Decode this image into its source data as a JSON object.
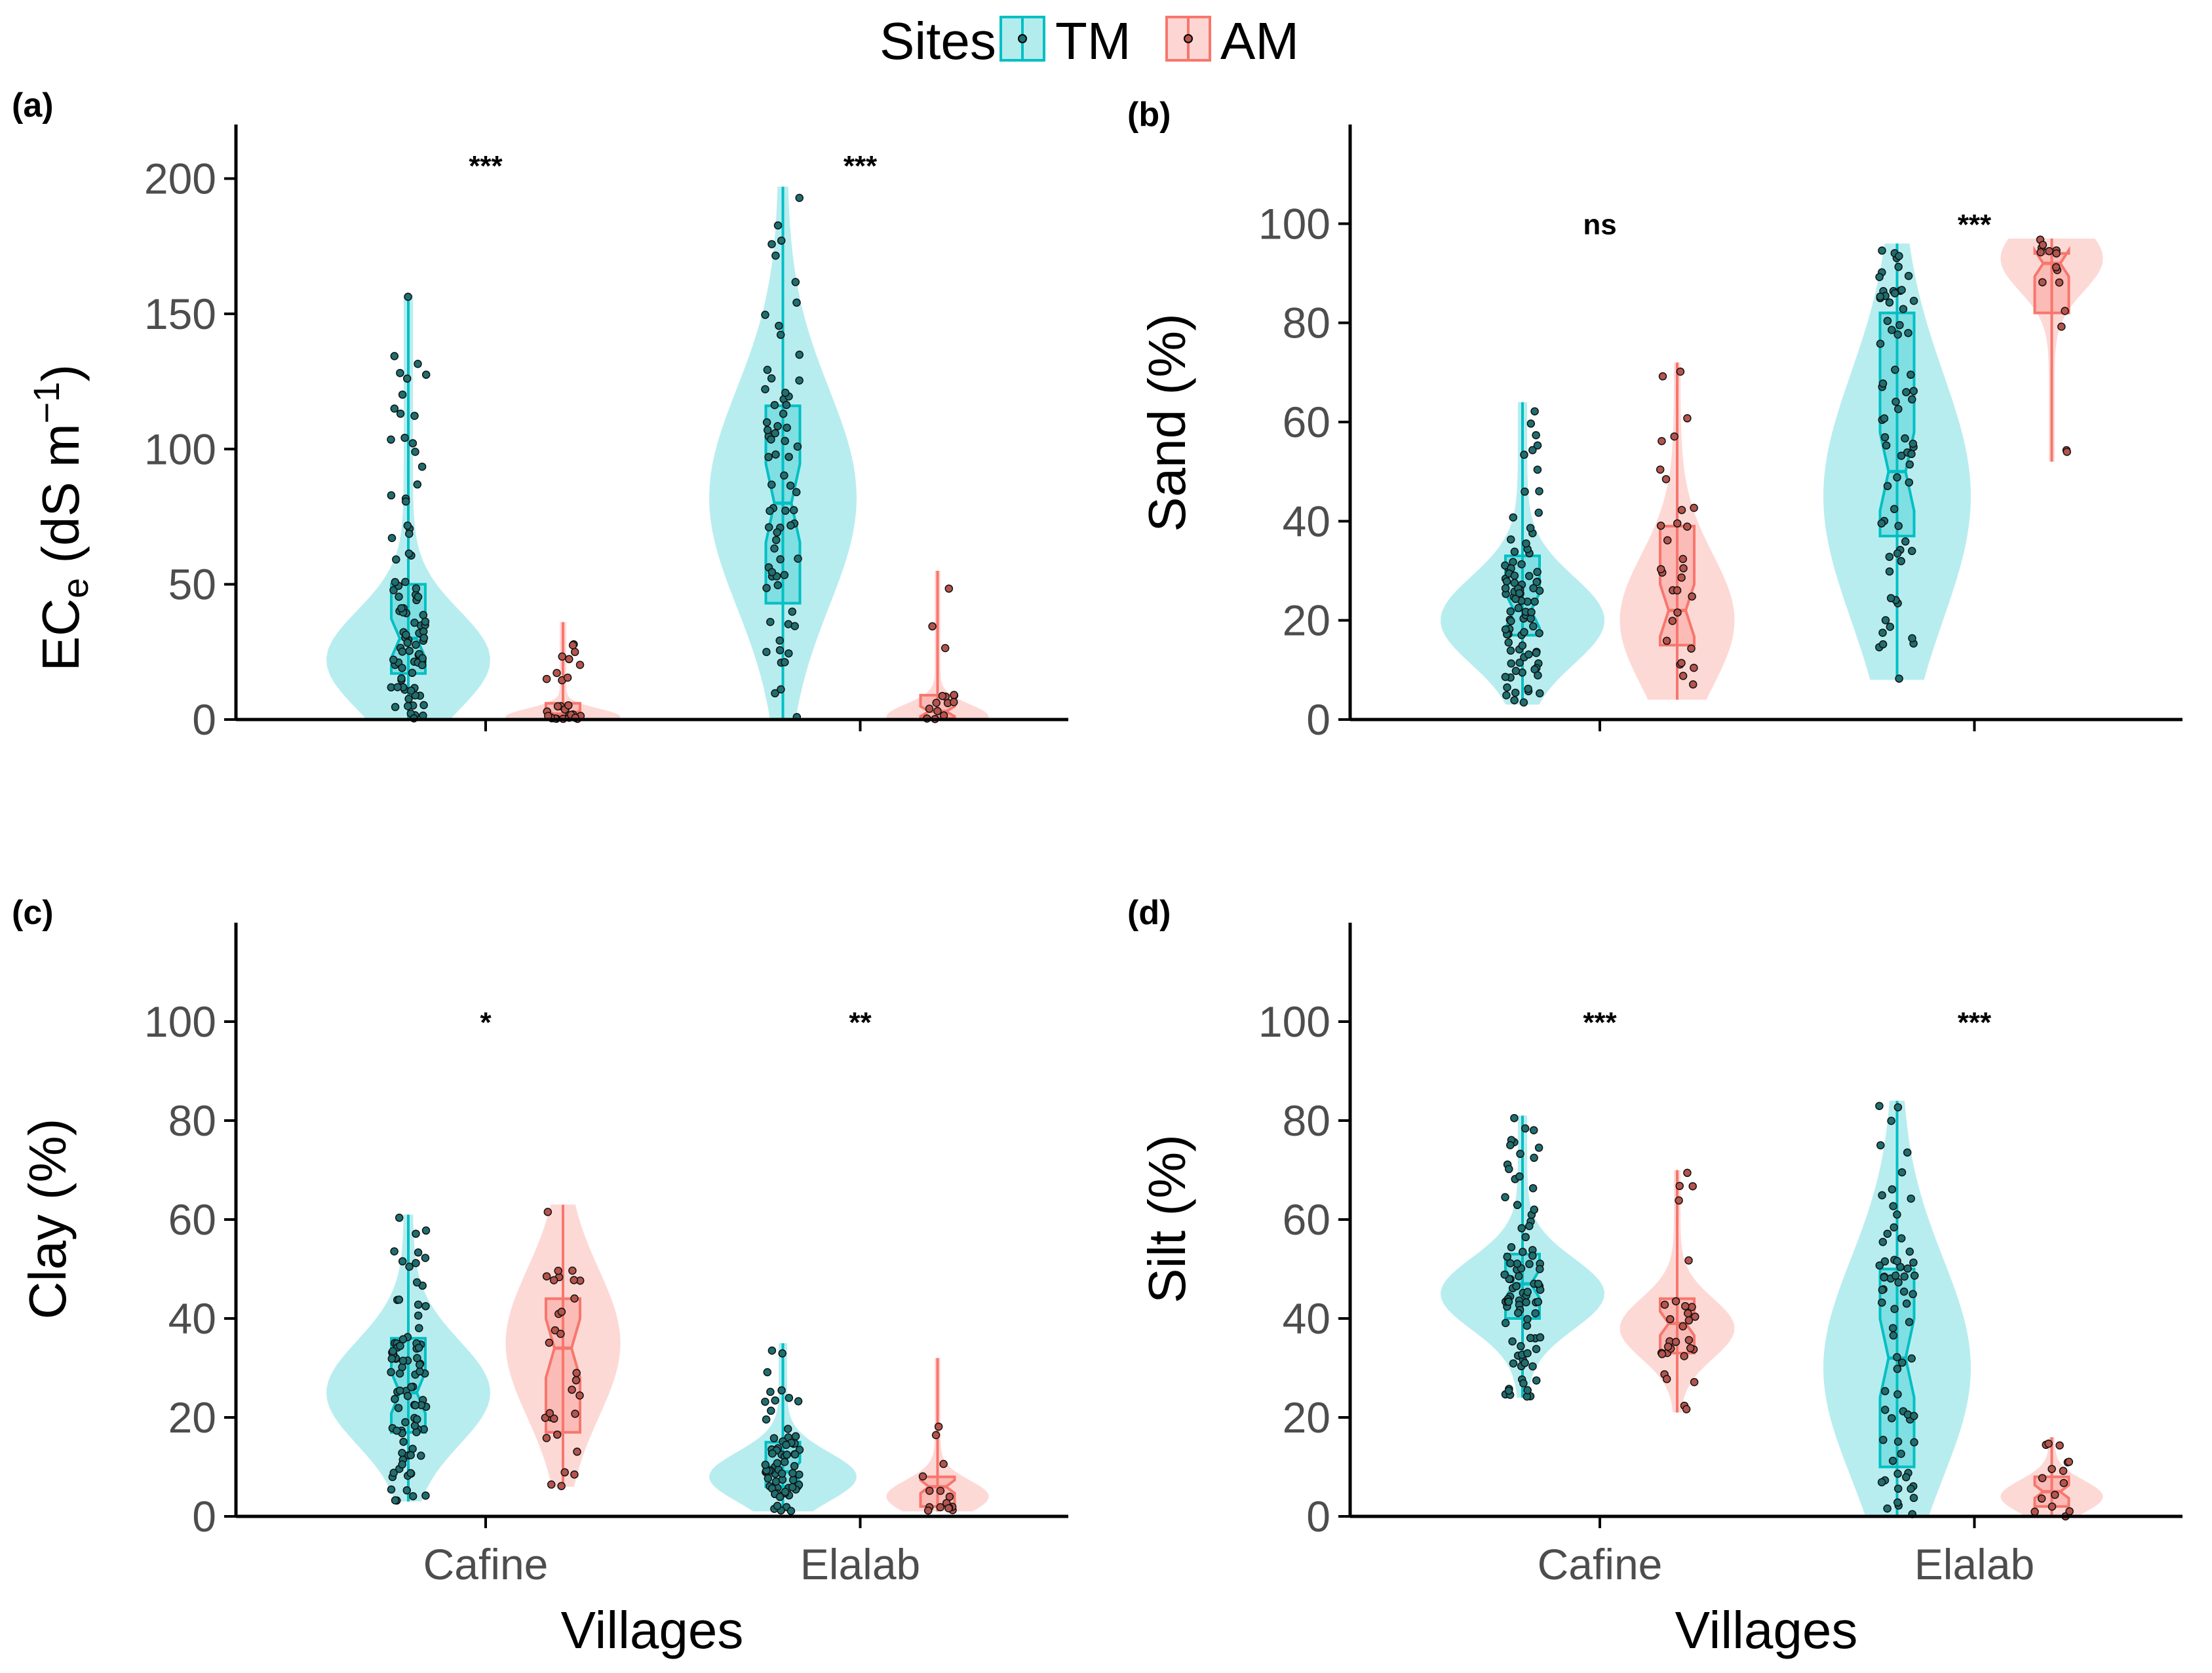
{
  "legend": {
    "title": "Sites",
    "entries": [
      {
        "label": "TM",
        "color": "#00BFC4"
      },
      {
        "label": "AM",
        "color": "#F8766D"
      }
    ]
  },
  "shared_xlabel": "Villages",
  "chart_data": [
    {
      "type": "violin-box",
      "panel": "(a)",
      "ylabel_main": "EC",
      "ylabel_sub": "e",
      "ylabel_rest": " (dS m",
      "ylabel_sup": "−1",
      "ylabel_close": ")",
      "ylim": [
        0,
        220
      ],
      "yticks": [
        0,
        50,
        100,
        150,
        200
      ],
      "categories": [
        "Cafine",
        "Elalab"
      ],
      "significance": [
        "***",
        "***"
      ],
      "series": [
        {
          "name": "TM",
          "groups": [
            {
              "min": 0,
              "q1": 17,
              "median": 30,
              "q3": 50,
              "max": 157,
              "mode": 22,
              "n": 90
            },
            {
              "min": 0,
              "q1": 43,
              "median": 80,
              "q3": 116,
              "max": 197,
              "mode": 82,
              "n": 70
            }
          ]
        },
        {
          "name": "AM",
          "groups": [
            {
              "min": 0,
              "q1": 0.5,
              "median": 2,
              "q3": 6,
              "max": 36,
              "mode": 1,
              "n": 30
            },
            {
              "min": 0,
              "q1": 0.5,
              "median": 3,
              "q3": 9,
              "max": 55,
              "mode": 1,
              "n": 15
            }
          ]
        }
      ]
    },
    {
      "type": "violin-box",
      "panel": "(b)",
      "ylabel_main": "Sand (%)",
      "ylim": [
        0,
        120
      ],
      "yticks": [
        0,
        20,
        40,
        60,
        80,
        100
      ],
      "categories": [
        "Cafine",
        "Elalab"
      ],
      "significance": [
        "ns",
        "***"
      ],
      "series": [
        {
          "name": "TM",
          "groups": [
            {
              "min": 3,
              "q1": 17,
              "median": 22,
              "q3": 33,
              "max": 64,
              "mode": 20,
              "n": 90
            },
            {
              "min": 8,
              "q1": 37,
              "median": 50,
              "q3": 82,
              "max": 96,
              "mode": 45,
              "n": 70
            }
          ]
        },
        {
          "name": "AM",
          "groups": [
            {
              "min": 4,
              "q1": 15,
              "median": 22,
              "q3": 39,
              "max": 72,
              "mode": 20,
              "n": 30
            },
            {
              "min": 52,
              "q1": 82,
              "median": 92,
              "q3": 94,
              "max": 97,
              "mode": 93,
              "n": 15
            }
          ]
        }
      ]
    },
    {
      "type": "violin-box",
      "panel": "(c)",
      "ylabel_main": "Clay (%)",
      "ylim": [
        0,
        120
      ],
      "yticks": [
        0,
        20,
        40,
        60,
        80,
        100
      ],
      "categories": [
        "Cafine",
        "Elalab"
      ],
      "significance": [
        "*",
        "**"
      ],
      "series": [
        {
          "name": "TM",
          "groups": [
            {
              "min": 3,
              "q1": 17,
              "median": 25,
              "q3": 36,
              "max": 61,
              "mode": 25,
              "n": 90
            },
            {
              "min": 1,
              "q1": 6,
              "median": 9,
              "q3": 15,
              "max": 35,
              "mode": 8,
              "n": 70
            }
          ]
        },
        {
          "name": "AM",
          "groups": [
            {
              "min": 6,
              "q1": 17,
              "median": 34,
              "q3": 44,
              "max": 63,
              "mode": 35,
              "n": 30
            },
            {
              "min": 1,
              "q1": 2,
              "median": 6,
              "q3": 8,
              "max": 32,
              "mode": 4,
              "n": 15
            }
          ]
        }
      ]
    },
    {
      "type": "violin-box",
      "panel": "(d)",
      "ylabel_main": "Silt (%)",
      "ylim": [
        0,
        120
      ],
      "yticks": [
        0,
        20,
        40,
        60,
        80,
        100
      ],
      "categories": [
        "Cafine",
        "Elalab"
      ],
      "significance": [
        "***",
        "***"
      ],
      "series": [
        {
          "name": "TM",
          "groups": [
            {
              "min": 24,
              "q1": 40,
              "median": 47,
              "q3": 53,
              "max": 81,
              "mode": 45,
              "n": 90
            },
            {
              "min": 0,
              "q1": 10,
              "median": 32,
              "q3": 50,
              "max": 84,
              "mode": 30,
              "n": 70
            }
          ]
        },
        {
          "name": "AM",
          "groups": [
            {
              "min": 21,
              "q1": 33,
              "median": 39,
              "q3": 44,
              "max": 70,
              "mode": 38,
              "n": 30
            },
            {
              "min": 0,
              "q1": 2,
              "median": 5,
              "q3": 8,
              "max": 16,
              "mode": 4,
              "n": 15
            }
          ]
        }
      ]
    }
  ]
}
